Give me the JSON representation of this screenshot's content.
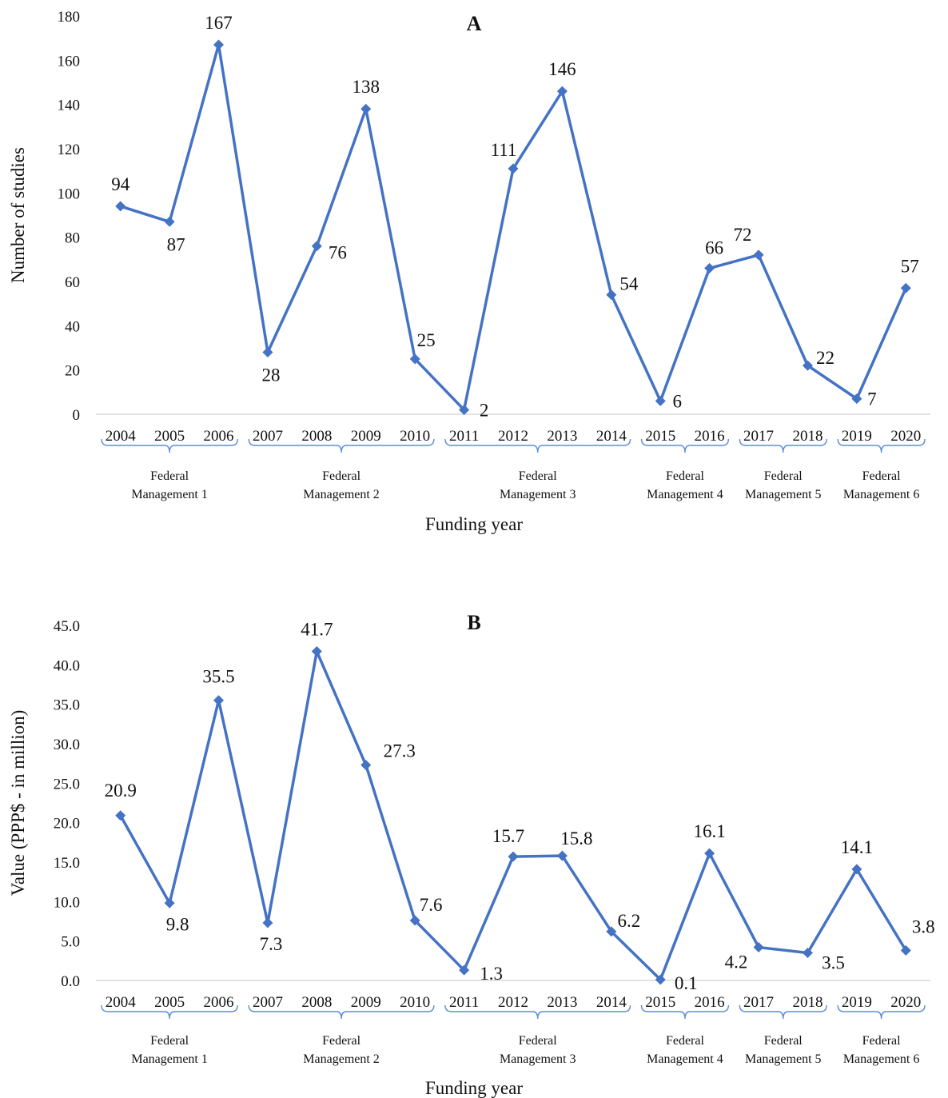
{
  "chart_data": [
    {
      "type": "line",
      "title": "A",
      "xlabel": "Funding year",
      "ylabel": "Number of studies",
      "ylim": [
        0,
        180
      ],
      "yticks": [
        "0",
        "20",
        "40",
        "60",
        "80",
        "100",
        "120",
        "140",
        "160",
        "180"
      ],
      "categories": [
        "2004",
        "2005",
        "2006",
        "2007",
        "2008",
        "2009",
        "2010",
        "2011",
        "2012",
        "2013",
        "2014",
        "2015",
        "2016",
        "2017",
        "2018",
        "2019",
        "2020"
      ],
      "values": [
        94,
        87,
        167,
        28,
        76,
        138,
        25,
        2,
        111,
        146,
        54,
        6,
        66,
        72,
        22,
        7,
        57
      ],
      "value_labels": [
        "94",
        "87",
        "167",
        "28",
        "76",
        "138",
        "25",
        "2",
        "111",
        "146",
        "54",
        "6",
        "66",
        "72",
        "22",
        "7",
        "57"
      ],
      "groups": [
        {
          "line1": "Federal",
          "line2": "Management 1"
        },
        {
          "line1": "Federal",
          "line2": "Management 2"
        },
        {
          "line1": "Federal",
          "line2": "Management 3"
        },
        {
          "line1": "Federal",
          "line2": "Management 4"
        },
        {
          "line1": "Federal",
          "line2": "Management 5"
        },
        {
          "line1": "Federal",
          "line2": "Management 6"
        }
      ],
      "group_spans": [
        [
          0,
          2
        ],
        [
          3,
          6
        ],
        [
          7,
          10
        ],
        [
          11,
          12
        ],
        [
          13,
          14
        ],
        [
          15,
          16
        ]
      ],
      "grid": false,
      "line_color": "#4472C4"
    },
    {
      "type": "line",
      "title": "B",
      "xlabel": "Funding year",
      "ylabel": "Value (PPP$ - in million)",
      "ylim": [
        0,
        45
      ],
      "yticks": [
        "0.0",
        "5.0",
        "10.0",
        "15.0",
        "20.0",
        "25.0",
        "30.0",
        "35.0",
        "40.0",
        "45.0"
      ],
      "categories": [
        "2004",
        "2005",
        "2006",
        "2007",
        "2008",
        "2009",
        "2010",
        "2011",
        "2012",
        "2013",
        "2014",
        "2015",
        "2016",
        "2017",
        "2018",
        "2019",
        "2020"
      ],
      "values": [
        20.9,
        9.8,
        35.5,
        7.3,
        41.7,
        27.3,
        7.6,
        1.3,
        15.7,
        15.8,
        6.2,
        0.1,
        16.1,
        4.2,
        3.5,
        14.1,
        3.8
      ],
      "value_labels": [
        "20.9",
        "9.8",
        "35.5",
        "7.3",
        "41.7",
        "27.3",
        "7.6",
        "1.3",
        "15.7",
        "15.8",
        "6.2",
        "0.1",
        "16.1",
        "4.2",
        "3.5",
        "14.1",
        "3.8"
      ],
      "groups": [
        {
          "line1": "Federal",
          "line2": "Management 1"
        },
        {
          "line1": "Federal",
          "line2": "Management 2"
        },
        {
          "line1": "Federal",
          "line2": "Management 3"
        },
        {
          "line1": "Federal",
          "line2": "Management 4"
        },
        {
          "line1": "Federal",
          "line2": "Management 5"
        },
        {
          "line1": "Federal",
          "line2": "Management 6"
        }
      ],
      "group_spans": [
        [
          0,
          2
        ],
        [
          3,
          6
        ],
        [
          7,
          10
        ],
        [
          11,
          12
        ],
        [
          13,
          14
        ],
        [
          15,
          16
        ]
      ],
      "grid": false,
      "line_color": "#4472C4"
    }
  ]
}
